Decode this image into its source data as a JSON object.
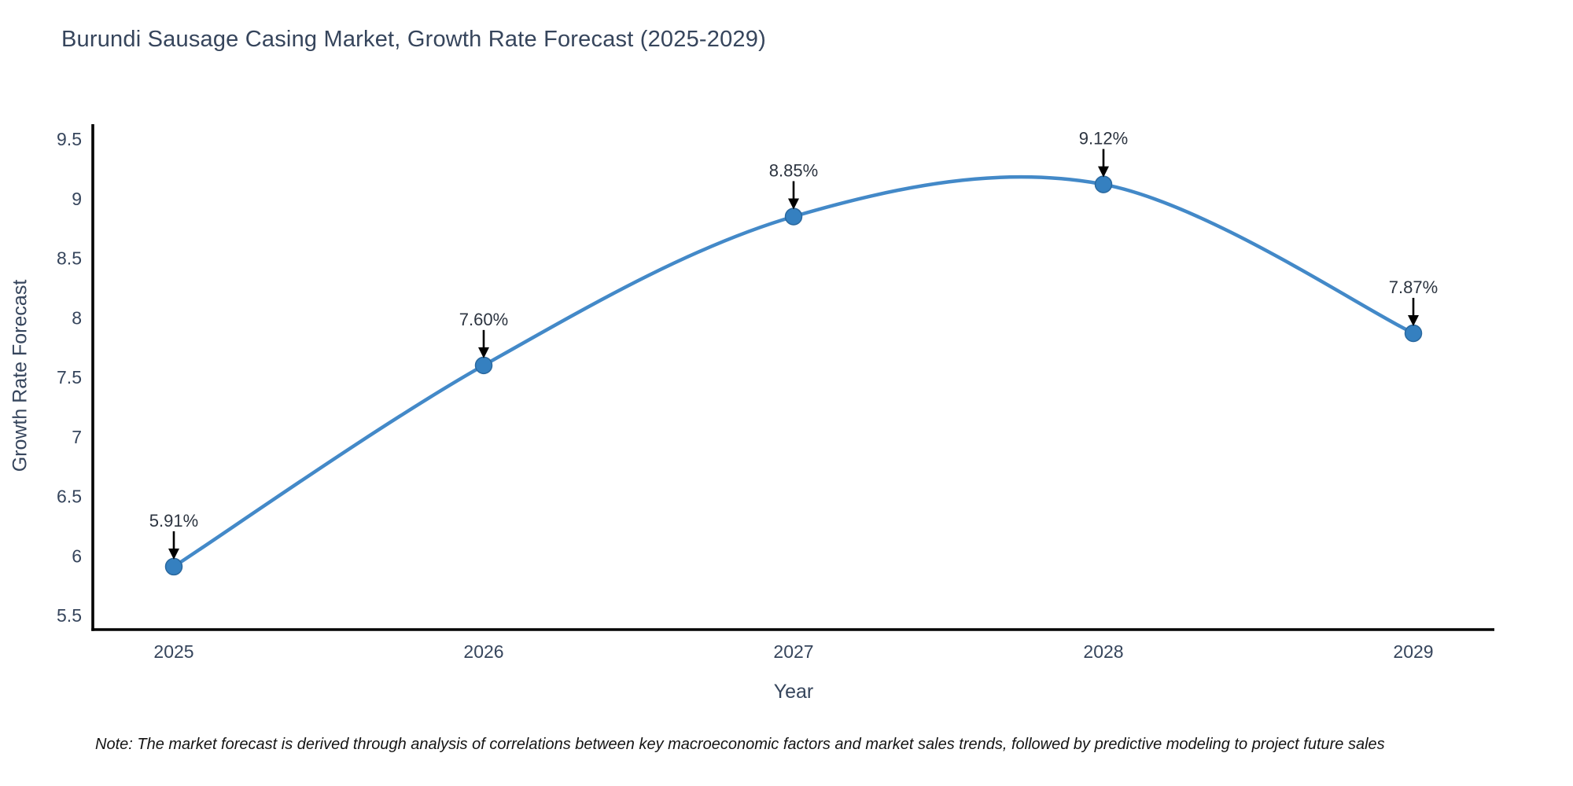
{
  "page": {
    "note": "Note: The market forecast is derived through analysis of correlations between key macroeconomic factors and market sales trends, followed by predictive modeling to project future sales"
  },
  "chart_data": {
    "type": "line",
    "title": "Burundi Sausage Casing Market, Growth Rate Forecast (2025-2029)",
    "xlabel": "Year",
    "ylabel": "Growth Rate Forecast",
    "categories": [
      "2025",
      "2026",
      "2027",
      "2028",
      "2029"
    ],
    "series": [
      {
        "name": "Growth Rate Forecast",
        "values": [
          5.91,
          7.6,
          8.85,
          9.12,
          7.87
        ],
        "point_labels": [
          "5.91%",
          "7.60%",
          "8.85%",
          "9.12%",
          "7.87%"
        ]
      }
    ],
    "yticks": [
      "5.5",
      "6",
      "6.5",
      "7",
      "7.5",
      "8",
      "8.5",
      "9",
      "9.5"
    ],
    "ylim": [
      5.39,
      9.63
    ],
    "grid": false,
    "legend": "none",
    "smooth": true,
    "annotations_arrow": "down",
    "colors": {
      "line": "#4389c8",
      "marker": "#3580c0",
      "marker_edge": "#2a689e",
      "axis": "#000000",
      "tick_text": "#36455c",
      "annotation_text": "#2c3440",
      "arrow": "#000000"
    }
  }
}
